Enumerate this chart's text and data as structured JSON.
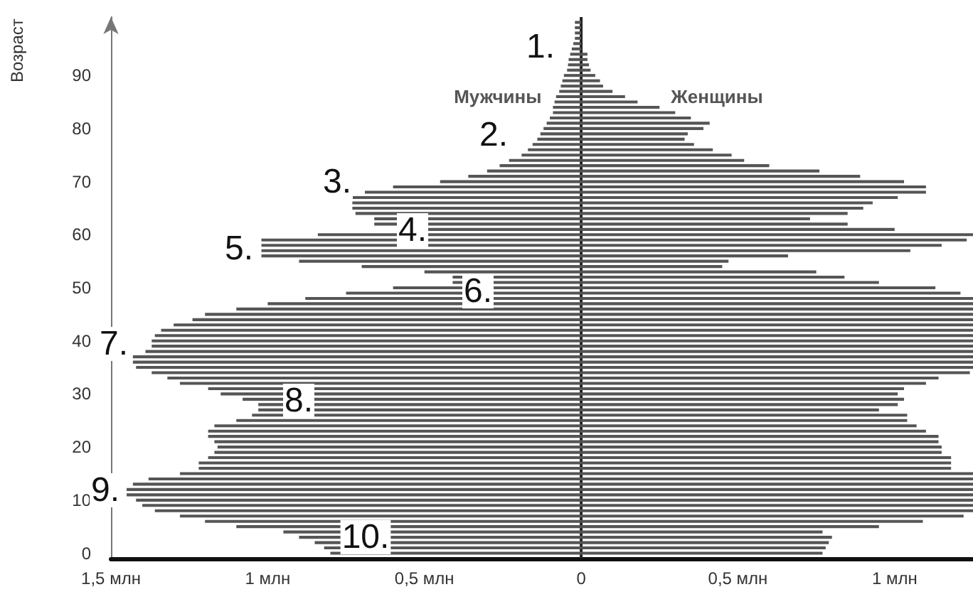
{
  "chart_data": {
    "type": "bar",
    "orientation": "horizontal",
    "stacked": true,
    "ylabel": "Возраст",
    "x": [
      0,
      1,
      2,
      3,
      4,
      5,
      6,
      7,
      8,
      9,
      10,
      11,
      12,
      13,
      14,
      15,
      16,
      17,
      18,
      19,
      20,
      21,
      22,
      23,
      24,
      25,
      26,
      27,
      28,
      29,
      30,
      31,
      32,
      33,
      34,
      35,
      36,
      37,
      38,
      39,
      40,
      41,
      42,
      43,
      44,
      45,
      46,
      47,
      48,
      49,
      50,
      51,
      52,
      53,
      54,
      55,
      56,
      57,
      58,
      59,
      60,
      61,
      62,
      63,
      64,
      65,
      66,
      67,
      68,
      69,
      70,
      71,
      72,
      73,
      74,
      75,
      76,
      77,
      78,
      79,
      80,
      81,
      82,
      83,
      84,
      85,
      86,
      87,
      88,
      89,
      90,
      91,
      92,
      93,
      94,
      95,
      96,
      97,
      98,
      99,
      100
    ],
    "series": [
      {
        "name": "Мужчины",
        "color": "#555555",
        "values": [
          -0.8,
          -0.82,
          -0.85,
          -0.9,
          -0.95,
          -1.1,
          -1.2,
          -1.28,
          -1.36,
          -1.4,
          -1.42,
          -1.45,
          -1.45,
          -1.43,
          -1.38,
          -1.28,
          -1.22,
          -1.22,
          -1.19,
          -1.17,
          -1.16,
          -1.17,
          -1.19,
          -1.19,
          -1.17,
          -1.1,
          -1.05,
          -1.03,
          -1.03,
          -1.08,
          -1.15,
          -1.19,
          -1.28,
          -1.32,
          -1.37,
          -1.42,
          -1.43,
          -1.43,
          -1.39,
          -1.37,
          -1.37,
          -1.36,
          -1.34,
          -1.3,
          -1.24,
          -1.2,
          -1.1,
          -1.0,
          -0.88,
          -0.75,
          -0.6,
          -0.41,
          -0.41,
          -0.5,
          -0.7,
          -0.9,
          -1.02,
          -1.02,
          -1.02,
          -1.02,
          -0.84,
          -0.49,
          -0.66,
          -0.66,
          -0.72,
          -0.73,
          -0.73,
          -0.73,
          -0.69,
          -0.6,
          -0.45,
          -0.36,
          -0.3,
          -0.26,
          -0.23,
          -0.19,
          -0.17,
          -0.155,
          -0.14,
          -0.13,
          -0.12,
          -0.11,
          -0.1,
          -0.09,
          -0.09,
          -0.085,
          -0.08,
          -0.07,
          -0.065,
          -0.06,
          -0.055,
          -0.045,
          -0.042,
          -0.04,
          -0.035,
          -0.03,
          -0.025,
          -0.02,
          -0.02,
          -0.02,
          -0.02
        ]
      },
      {
        "name": "Женщины",
        "color": "#555555",
        "values": [
          0.77,
          0.78,
          0.79,
          0.8,
          0.77,
          0.95,
          1.09,
          1.22,
          1.25,
          1.25,
          1.25,
          1.25,
          1.25,
          1.25,
          1.25,
          1.25,
          1.18,
          1.18,
          1.18,
          1.15,
          1.15,
          1.14,
          1.14,
          1.1,
          1.07,
          1.04,
          1.04,
          0.95,
          1.01,
          1.03,
          1.01,
          1.03,
          1.1,
          1.14,
          1.24,
          1.25,
          1.25,
          1.25,
          1.25,
          1.25,
          1.25,
          1.25,
          1.25,
          1.25,
          1.25,
          1.25,
          1.25,
          1.25,
          1.25,
          1.21,
          1.13,
          0.95,
          0.84,
          0.75,
          0.45,
          0.47,
          0.66,
          1.05,
          1.15,
          1.23,
          1.25,
          1.0,
          0.85,
          0.73,
          0.85,
          0.9,
          0.93,
          1.01,
          1.1,
          1.1,
          1.03,
          0.89,
          0.76,
          0.6,
          0.52,
          0.48,
          0.42,
          0.36,
          0.33,
          0.34,
          0.39,
          0.41,
          0.35,
          0.3,
          0.25,
          0.18,
          0.14,
          0.1,
          0.07,
          0.06,
          0.045,
          0.03,
          0.025,
          0.02,
          0.02,
          null,
          null,
          null,
          null,
          null,
          null
        ]
      }
    ],
    "xlim": [
      -1.5,
      1.25
    ],
    "xticks": [
      {
        "value": -1.5,
        "label": "1,5 млн"
      },
      {
        "value": -1,
        "label": "1 млн"
      },
      {
        "value": -0.5,
        "label": "0,5 млн"
      },
      {
        "value": 0,
        "label": "0"
      },
      {
        "value": 0.5,
        "label": "0,5 млн"
      },
      {
        "value": 1,
        "label": "1 млн"
      }
    ],
    "ylim": [
      -1,
      101
    ],
    "yticks": [
      0,
      10,
      20,
      30,
      40,
      50,
      60,
      70,
      80,
      90
    ],
    "annotations": [
      "1.",
      "2.",
      "3.",
      "4.",
      "5.",
      "6.",
      "7.",
      "8.",
      "9.",
      "10."
    ]
  }
}
